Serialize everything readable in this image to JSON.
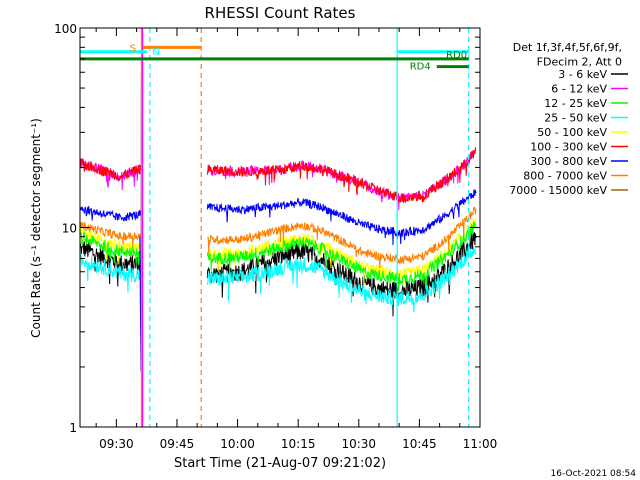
{
  "chart_data": {
    "type": "line",
    "title": "RHESSI Count Rates",
    "xlabel": "Start Time (21-Aug-07 09:21:02)",
    "ylabel": "Count Rate (s⁻¹ detector segment⁻¹)",
    "yscale": "log",
    "ylim": [
      1,
      100
    ],
    "xlim_minutes_after_0921": [
      0,
      99
    ],
    "x_tick_labels": [
      "09:30",
      "09:45",
      "10:00",
      "10:15",
      "10:30",
      "10:45",
      "11:00"
    ],
    "x_ticks_minutes": [
      9,
      24,
      39,
      54,
      69,
      84,
      99
    ],
    "y_tick_labels": [
      "1",
      "10",
      "100"
    ],
    "y_ticks": [
      1,
      10,
      100
    ],
    "grid": false,
    "legend_position": "right",
    "legend_header": [
      "Det 1f,3f,4f,5f,6f,9f,",
      "FDecim 2, Att 0"
    ],
    "data_gap_minutes": [
      15.5,
      31.5
    ],
    "series": [
      {
        "name": "3 - 6 keV",
        "color": "#000000",
        "x": [
          0,
          5,
          10,
          14.5,
          31.5,
          40,
          50,
          55,
          60,
          65,
          70,
          75,
          80,
          85,
          90,
          95,
          98
        ],
        "values": [
          8.0,
          7.2,
          6.6,
          6.5,
          5.8,
          6.0,
          7.2,
          7.6,
          6.9,
          5.9,
          5.2,
          4.9,
          4.8,
          5.0,
          6.0,
          7.6,
          9.0
        ]
      },
      {
        "name": "6 - 12 keV",
        "color": "#ff00ff",
        "x": [
          0,
          5,
          10,
          14.5,
          31.5,
          40,
          50,
          55,
          60,
          65,
          70,
          75,
          80,
          85,
          90,
          95,
          98
        ],
        "values": [
          21,
          19.5,
          18,
          19.5,
          19.5,
          19,
          19.5,
          20.5,
          19.5,
          18,
          16.5,
          15,
          14,
          14.5,
          17,
          20.5,
          24
        ]
      },
      {
        "name": "12 - 25 keV",
        "color": "#00ff00",
        "x": [
          0,
          5,
          10,
          14.5,
          31.5,
          40,
          50,
          55,
          60,
          65,
          70,
          75,
          80,
          85,
          90,
          95,
          98
        ],
        "values": [
          9.0,
          8.2,
          7.6,
          7.5,
          7.0,
          7.1,
          8.0,
          8.5,
          7.8,
          6.8,
          6.0,
          5.7,
          5.5,
          5.8,
          7.0,
          8.8,
          10.3
        ]
      },
      {
        "name": "25 - 50 keV",
        "color": "#00ffff",
        "x": [
          0,
          5,
          10,
          14.5,
          31.5,
          40,
          50,
          55,
          60,
          65,
          70,
          75,
          80,
          85,
          90,
          95,
          98
        ],
        "values": [
          6.9,
          6.4,
          5.9,
          5.8,
          5.5,
          5.6,
          6.3,
          6.6,
          6.1,
          5.3,
          4.7,
          4.5,
          4.4,
          4.6,
          5.5,
          6.9,
          8.0
        ]
      },
      {
        "name": "50 - 100 keV",
        "color": "#ffff00",
        "x": [
          0,
          5,
          10,
          14.5,
          31.5,
          40,
          50,
          55,
          60,
          65,
          70,
          75,
          80,
          85,
          90,
          95,
          98
        ],
        "values": [
          9.4,
          8.6,
          8.0,
          7.9,
          7.3,
          7.4,
          8.4,
          8.9,
          8.2,
          7.2,
          6.3,
          6.0,
          5.8,
          6.1,
          7.3,
          9.2,
          10.8
        ]
      },
      {
        "name": "100 - 300 keV",
        "color": "#ff0000",
        "x": [
          0,
          5,
          10,
          14.5,
          31.5,
          40,
          50,
          55,
          60,
          65,
          70,
          75,
          80,
          85,
          90,
          95,
          98
        ],
        "values": [
          21,
          19.5,
          18,
          19.5,
          19.5,
          19,
          19.5,
          20.5,
          19.5,
          18,
          16.5,
          15,
          14,
          14.5,
          17,
          20.5,
          24
        ]
      },
      {
        "name": "300 - 800 keV",
        "color": "#0000ff",
        "x": [
          0,
          5,
          10,
          14.5,
          31.5,
          40,
          50,
          55,
          60,
          65,
          70,
          75,
          80,
          85,
          90,
          95,
          98
        ],
        "values": [
          12.5,
          11.8,
          11.2,
          11.6,
          12.6,
          12.3,
          12.9,
          13.4,
          12.6,
          11.4,
          10.3,
          9.7,
          9.4,
          9.8,
          11.3,
          13.6,
          15.0
        ]
      },
      {
        "name": "800 - 7000 keV",
        "color": "#ff8000",
        "x": [
          0,
          5,
          10,
          14.5,
          31.5,
          40,
          50,
          55,
          60,
          65,
          70,
          75,
          80,
          85,
          90,
          95,
          98
        ],
        "values": [
          10.3,
          9.6,
          9.0,
          9.1,
          8.7,
          8.7,
          9.8,
          10.3,
          9.6,
          8.5,
          7.5,
          7.1,
          6.9,
          7.2,
          8.5,
          10.6,
          12.3
        ]
      },
      {
        "name": "7000 - 15000 keV",
        "color": "#9a6a00",
        "x": [],
        "values": []
      }
    ],
    "state_bars": [
      {
        "label": "S",
        "color": "#ff8000",
        "x_start": 15.5,
        "x_end": 30,
        "y": 80
      },
      {
        "label": "N",
        "color": "#00ffff",
        "x_start": 0,
        "x_end": 16.5,
        "y": 76
      },
      {
        "label": "N",
        "color": "#00ffff",
        "x_start": 78.5,
        "x_end": 96.2,
        "y": 76
      },
      {
        "label": "RD0",
        "color": "#008000",
        "x_start": 0,
        "x_end": 96.2,
        "y": 70
      },
      {
        "label": "RD4",
        "color": "#008000",
        "x_start": 88.3,
        "x_end": 96.2,
        "y": 64
      }
    ],
    "vertical_markers": [
      {
        "x": 15.2,
        "color": "#ff8000",
        "style": "solid"
      },
      {
        "x": 15.5,
        "color": "#ff00ff",
        "style": "solid"
      },
      {
        "x": 17.3,
        "color": "#00ffff",
        "style": "dashed"
      },
      {
        "x": 30.0,
        "color": "#ff8000",
        "style": "dashed"
      },
      {
        "x": 78.5,
        "color": "#00ffff",
        "style": "solid"
      },
      {
        "x": 96.2,
        "color": "#00ffff",
        "style": "dashed"
      }
    ],
    "footer_timestamp": "16-Oct-2021 08:54"
  }
}
